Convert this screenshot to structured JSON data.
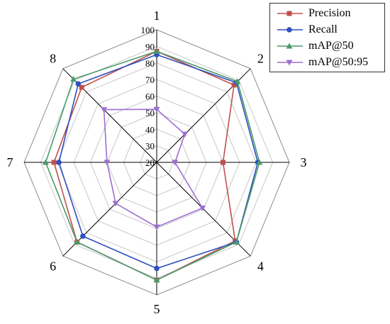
{
  "chart_data": {
    "type": "radar",
    "axes": [
      "1",
      "2",
      "3",
      "4",
      "5",
      "6",
      "7",
      "8"
    ],
    "radial_ticks": [
      20,
      30,
      40,
      50,
      60,
      70,
      80,
      90,
      100
    ],
    "rlim": [
      20,
      100
    ],
    "grid": true,
    "legend_position": "top-right",
    "series": [
      {
        "name": "Precision",
        "color": "#c0504d",
        "marker": "square",
        "values": [
          87,
          86,
          60,
          87,
          91,
          88,
          82,
          84
        ]
      },
      {
        "name": "Recall",
        "color": "#2e4fbf",
        "marker": "circle",
        "values": [
          85,
          88,
          81,
          88,
          84,
          83,
          79,
          87
        ]
      },
      {
        "name": "mAP@50",
        "color": "#4a9a6a",
        "marker": "triangle-up",
        "values": [
          87,
          89,
          82,
          88,
          91,
          88,
          87,
          91
        ]
      },
      {
        "name": "mAP@50:95",
        "color": "#9b6fd0",
        "marker": "triangle-down",
        "values": [
          52,
          44,
          31,
          59,
          59,
          55,
          50,
          65
        ]
      }
    ]
  }
}
